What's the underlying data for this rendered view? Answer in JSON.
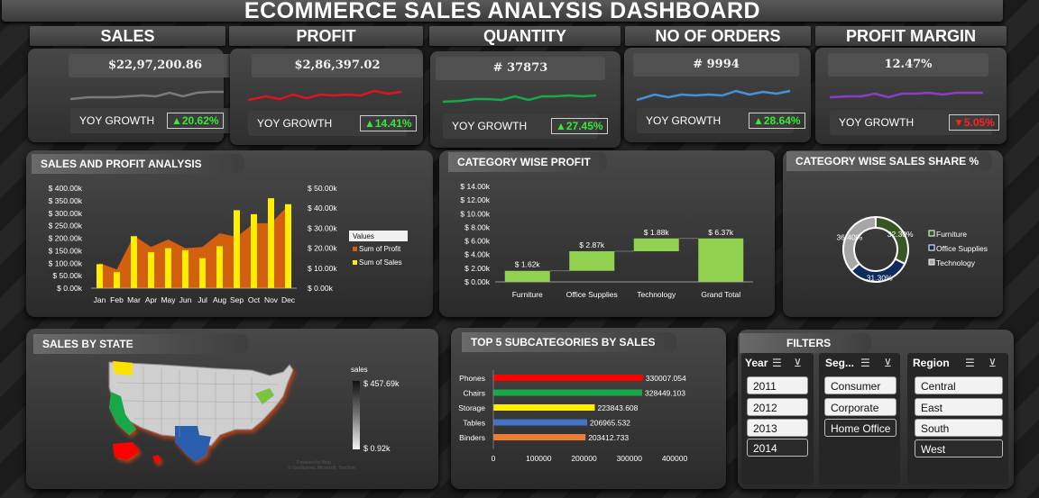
{
  "title": "ECOMMERCE SALES ANALYSIS DASHBOARD",
  "kpis": [
    {
      "head": "SALES",
      "value": "$22,97,200.86",
      "yoy_label": "YOY GROWTH",
      "yoy": "▲20.62%",
      "yoy_color": "#39e639",
      "spark_color": "#7a7a7a"
    },
    {
      "head": "PROFIT",
      "value": "$2,86,397.02",
      "yoy_label": "YOY GROWTH",
      "yoy": "▲14.41%",
      "yoy_color": "#39e639",
      "spark_color": "#e0141e"
    },
    {
      "head": "QUANTITY",
      "value": "# 37873",
      "yoy_label": "YOY GROWTH",
      "yoy": "▲27.45%",
      "yoy_color": "#39e639",
      "spark_color": "#18a84a"
    },
    {
      "head": "NO OF ORDERS",
      "value": "# 9994",
      "yoy_label": "YOY GROWTH",
      "yoy": "▲28.64%",
      "yoy_color": "#39e639",
      "spark_color": "#4a90d9"
    },
    {
      "head": "PROFIT MARGIN",
      "value": "12.47%",
      "yoy_label": "YOY GROWTH",
      "yoy": "▼5.05%",
      "yoy_color": "#ff2020",
      "spark_color": "#8a3ec4"
    }
  ],
  "panels": {
    "sales_profit": "SALES AND PROFIT ANALYSIS",
    "category_profit": "CATEGORY WISE PROFIT",
    "category_share": "CATEGORY WISE SALES SHARE %",
    "state": "SALES BY STATE",
    "subcategories": "TOP 5 SUBCATEGORIES BY SALES",
    "filters": "FILTERS"
  },
  "chart_data": [
    {
      "type": "bar",
      "title": "SALES AND PROFIT ANALYSIS",
      "categories": [
        "Jan",
        "Feb",
        "Mar",
        "Apr",
        "May",
        "Jun",
        "Jul",
        "Aug",
        "Sep",
        "Oct",
        "Nov",
        "Dec"
      ],
      "series": [
        {
          "name": "Sum of Profit",
          "chart": "area",
          "axis": "left",
          "color": "#d2600f",
          "values": [
            100,
            75,
            210,
            165,
            195,
            160,
            165,
            220,
            205,
            260,
            260,
            330
          ]
        },
        {
          "name": "Sum of Sales",
          "chart": "bar",
          "axis": "right",
          "color": "#ffee00",
          "values": [
            12,
            8,
            26,
            18,
            20,
            19,
            15,
            21,
            39,
            37,
            45,
            42
          ]
        }
      ],
      "yleft_ticks": [
        "$ 0.00k",
        "$ 50.00k",
        "$ 100.00k",
        "$ 150.00k",
        "$ 200.00k",
        "$ 250.00k",
        "$ 300.00k",
        "$ 350.00k",
        "$ 400.00k"
      ],
      "yright_ticks": [
        "$ 0.00k",
        "$ 10.00k",
        "$ 20.00k",
        "$ 30.00k",
        "$ 40.00k",
        "$ 50.00k"
      ],
      "ylim_left": [
        0,
        400
      ],
      "ylim_right": [
        0,
        50
      ],
      "legend_title": "Values",
      "legend_position": "right"
    },
    {
      "type": "bar",
      "subtype": "waterfall",
      "title": "CATEGORY WISE PROFIT",
      "categories": [
        "Furniture",
        "Office Supplies",
        "Technology",
        "Grand Total"
      ],
      "values": [
        1.62,
        2.87,
        1.88,
        6.37
      ],
      "labels": [
        "$ 1.62k",
        "$ 2.87k",
        "$ 1.88k",
        "$ 6.37k"
      ],
      "y_ticks": [
        "$ 0.00k",
        "$ 2.00k",
        "$ 4.00k",
        "$ 6.00k",
        "$ 8.00k",
        "$ 10.00k",
        "$ 12.00k",
        "$ 14.00k"
      ],
      "ylim": [
        0,
        14
      ],
      "color": "#92d050"
    },
    {
      "type": "pie",
      "subtype": "donut",
      "title": "CATEGORY WISE SALES SHARE %",
      "categories": [
        "Furniture",
        "Office Supplies",
        "Technology"
      ],
      "values": [
        32.3,
        31.3,
        36.4
      ],
      "labels": [
        "32.30%",
        "31.30%",
        "36.40%"
      ],
      "colors": [
        "#375623",
        "#0f2a5c",
        "#a6a6a6"
      ],
      "legend_position": "right"
    },
    {
      "type": "bar",
      "orientation": "horizontal",
      "title": "TOP 5 SUBCATEGORIES BY SALES",
      "categories": [
        "Phones",
        "Chairs",
        "Storage",
        "Tables",
        "Binders"
      ],
      "values": [
        330007.054,
        328449.103,
        223843.608,
        206965.532,
        203412.733
      ],
      "labels": [
        "330007.054",
        "328449.103",
        "223843.608",
        "206965.532",
        "203412.733"
      ],
      "colors": [
        "#ff0000",
        "#18a84a",
        "#ffee00",
        "#4472c4",
        "#ed7d31"
      ],
      "x_ticks": [
        "0",
        "100000",
        "200000",
        "300000",
        "400000"
      ],
      "xlim": [
        0,
        400000
      ]
    }
  ],
  "map": {
    "legend_title": "sales",
    "max_label": "$ 457.69k",
    "min_label": "$ 0.92k",
    "credit": "Powered by Bing\n© GeoNames, Microsoft, TomTom"
  },
  "filters": {
    "year": {
      "head": "Year",
      "items": [
        "2011",
        "2012",
        "2013",
        "2014"
      ]
    },
    "segment": {
      "head": "Seg...",
      "items": [
        "Consumer",
        "Corporate",
        "Home Office"
      ]
    },
    "region": {
      "head": "Region",
      "items": [
        "Central",
        "East",
        "South",
        "West"
      ]
    }
  }
}
